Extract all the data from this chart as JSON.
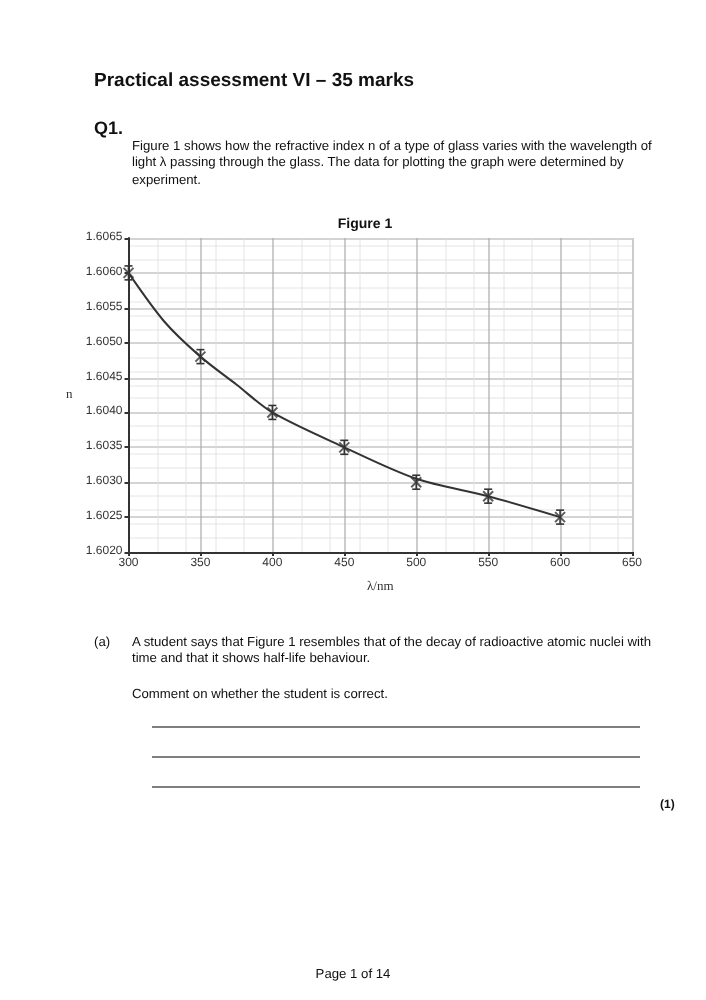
{
  "chart_data": {
    "type": "scatter",
    "title": "Figure 1",
    "xlabel": "λ/nm",
    "ylabel": "n",
    "annotations": [
      "Practical assessment VI – 35 marks",
      "Q1.",
      "Figure 1 shows how the refractive index n of a type of glass varies with the wavelength of light λ passing through the glass. The data for plotting the graph were determined by experiment.",
      "(a)",
      "A student says that Figure 1 resembles that of the decay of radioactive atomic nuclei with time and that it shows half-life behaviour.",
      "Comment on whether the student is correct.",
      "(1)",
      "Page 1 of 14"
    ],
    "series": [
      {
        "color": "#333333",
        "marker": "cross",
        "x": [
          300,
          350,
          400,
          450,
          500,
          550,
          600
        ],
        "values": [
          1.606,
          1.6048,
          1.604,
          1.6035,
          1.603,
          1.6028,
          1.6025
        ],
        "errors": [
          0.0001,
          0.0001,
          0.0001,
          0.0001,
          0.0001,
          0.0001,
          0.0001
        ]
      },
      {
        "type": "line",
        "color": "#333333",
        "line_style": "solid",
        "x": [
          300,
          325,
          350,
          375,
          400,
          450,
          500,
          550,
          600
        ],
        "values": [
          1.606,
          1.6053,
          1.6048,
          1.6044,
          1.604,
          1.6035,
          1.60305,
          1.6028,
          1.6025
        ]
      }
    ],
    "xlim": [
      300,
      650
    ],
    "xticks": [
      300,
      350,
      400,
      450,
      500,
      550,
      600,
      650
    ],
    "ylim": [
      1.602,
      1.6065
    ],
    "yticks": [
      {
        "value": 1.602,
        "label": "1.6020"
      },
      {
        "value": 1.6025,
        "label": "1.6025"
      },
      {
        "value": 1.603,
        "label": "1.6030"
      },
      {
        "value": 1.6035,
        "label": "1.6035"
      },
      {
        "value": 1.604,
        "label": "1.6040"
      },
      {
        "value": 1.6045,
        "label": "1.6045"
      },
      {
        "value": 1.605,
        "label": "1.6050"
      },
      {
        "value": 1.6055,
        "label": "1.6055"
      },
      {
        "value": 1.606,
        "label": "1.6060"
      },
      {
        "value": 1.6065,
        "label": "1.6065"
      }
    ],
    "grid": true
  }
}
